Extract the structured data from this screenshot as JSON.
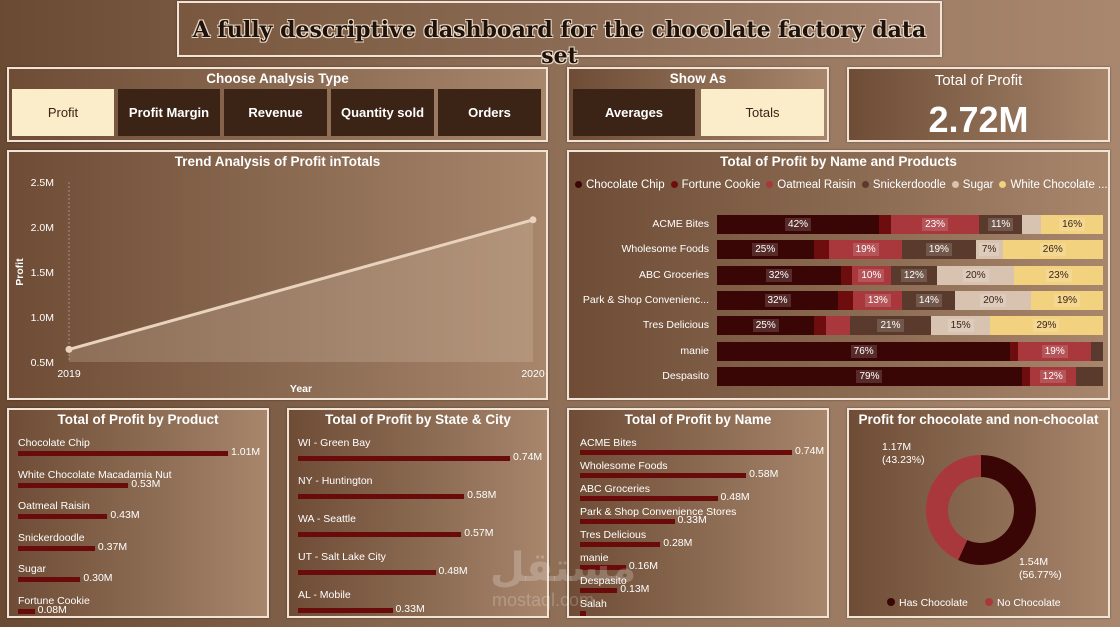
{
  "header": {
    "title": "A fully descriptive dashboard for the chocolate factory data set"
  },
  "analysis_type": {
    "title": "Choose Analysis Type",
    "options": [
      "Profit",
      "Profit Margin",
      "Revenue",
      "Quantity sold",
      "Orders"
    ],
    "selected": "Profit"
  },
  "show_as": {
    "title": "Show As",
    "options": [
      "Averages",
      "Totals"
    ],
    "selected": "Totals"
  },
  "kpi": {
    "title": "Total of Profit",
    "value": "2.72M"
  },
  "colors": {
    "bar": "#6a0b0b",
    "line": "#e9d3bc",
    "has_chocolate": "#3a0605",
    "no_chocolate": "#a9383d"
  },
  "chart_data": [
    {
      "id": "trend",
      "type": "area",
      "title": "Trend Analysis of Profit inTotals",
      "xlabel": "Year",
      "ylabel": "Profit",
      "x": [
        "2019",
        "2020"
      ],
      "values": [
        0.64,
        2.08
      ],
      "ylim": [
        0.5,
        2.5
      ],
      "yticks": [
        "0.5M",
        "1.0M",
        "1.5M",
        "2.0M",
        "2.5M"
      ],
      "grid": false
    },
    {
      "id": "stacked",
      "type": "bar",
      "title": "Total of Profit by Name and Products",
      "legend": [
        "Chocolate Chip",
        "Fortune Cookie",
        "Oatmeal Raisin",
        "Snickerdoodle",
        "Sugar",
        "White Chocolate ..."
      ],
      "legend_colors": [
        "#3a0605",
        "#6e0d0d",
        "#a9383d",
        "#5a3a2c",
        "#d8c3b0",
        "#f2d27e"
      ],
      "categories": [
        "ACME Bites",
        "Wholesome Foods",
        "ABC Groceries",
        "Park & Shop Convenienc...",
        "Tres Delicious",
        "manie",
        "Despasito"
      ],
      "series": [
        {
          "name": "Chocolate Chip",
          "values": [
            42,
            25,
            32,
            32,
            25,
            76,
            79
          ],
          "labels": [
            "42%",
            "25%",
            "32%",
            "32%",
            "25%",
            "76%",
            "79%"
          ]
        },
        {
          "name": "Fortune Cookie",
          "values": [
            3,
            4,
            3,
            4,
            3,
            2,
            2
          ],
          "labels": [
            "",
            "",
            "",
            "",
            "",
            "",
            ""
          ]
        },
        {
          "name": "Oatmeal Raisin",
          "values": [
            23,
            19,
            10,
            13,
            6,
            19,
            12
          ],
          "labels": [
            "23%",
            "19%",
            "10%",
            "13%",
            "",
            "19%",
            "12%"
          ]
        },
        {
          "name": "Snickerdoodle",
          "values": [
            11,
            19,
            12,
            14,
            21,
            3,
            7
          ],
          "labels": [
            "11%",
            "19%",
            "12%",
            "14%",
            "21%",
            "",
            ""
          ]
        },
        {
          "name": "Sugar",
          "values": [
            5,
            7,
            20,
            20,
            15,
            0,
            0
          ],
          "labels": [
            "",
            "7%",
            "20%",
            "20%",
            "15%",
            "",
            ""
          ]
        },
        {
          "name": "White Chocolate ...",
          "values": [
            16,
            26,
            23,
            19,
            29,
            0,
            0
          ],
          "labels": [
            "16%",
            "26%",
            "23%",
            "19%",
            "29%",
            "",
            ""
          ]
        }
      ]
    },
    {
      "id": "by_product",
      "type": "bar",
      "title": "Total of Profit by Product",
      "categories": [
        "Chocolate Chip",
        "White Chocolate Macadamia Nut",
        "Oatmeal Raisin",
        "Snickerdoodle",
        "Sugar",
        "Fortune Cookie"
      ],
      "values": [
        1.01,
        0.53,
        0.43,
        0.37,
        0.3,
        0.08
      ],
      "labels": [
        "1.01M",
        "0.53M",
        "0.43M",
        "0.37M",
        "0.30M",
        "0.08M"
      ]
    },
    {
      "id": "by_state",
      "type": "bar",
      "title": "Total of Profit by State & City",
      "categories": [
        "WI - Green Bay",
        "NY - Huntington",
        "WA - Seattle",
        "UT - Salt Lake City",
        "AL - Mobile"
      ],
      "values": [
        0.74,
        0.58,
        0.57,
        0.48,
        0.33
      ],
      "labels": [
        "0.74M",
        "0.58M",
        "0.57M",
        "0.48M",
        "0.33M"
      ]
    },
    {
      "id": "by_name",
      "type": "bar",
      "title": "Total of Profit by Name",
      "categories": [
        "ACME Bites",
        "Wholesome Foods",
        "ABC Groceries",
        "Park & Shop Convenience Stores",
        "Tres Delicious",
        "manie",
        "Despasito",
        "Salah"
      ],
      "values": [
        0.74,
        0.58,
        0.48,
        0.33,
        0.28,
        0.16,
        0.13,
        0.02
      ],
      "labels": [
        "0.74M",
        "0.58M",
        "0.48M",
        "0.33M",
        "0.28M",
        "0.16M",
        "0.13M",
        ""
      ]
    },
    {
      "id": "donut",
      "type": "pie",
      "title": "Profit for chocolate and non-chocolat",
      "categories": [
        "Has Chocolate",
        "No Chocolate"
      ],
      "values": [
        1.54,
        1.17
      ],
      "labels": [
        "1.54M",
        "1.17M"
      ],
      "percents": [
        "(56.77%)",
        "(43.23%)"
      ],
      "legend": "bottom"
    }
  ],
  "watermark": {
    "text": "مستقل",
    "sub": "mostaql.com"
  }
}
